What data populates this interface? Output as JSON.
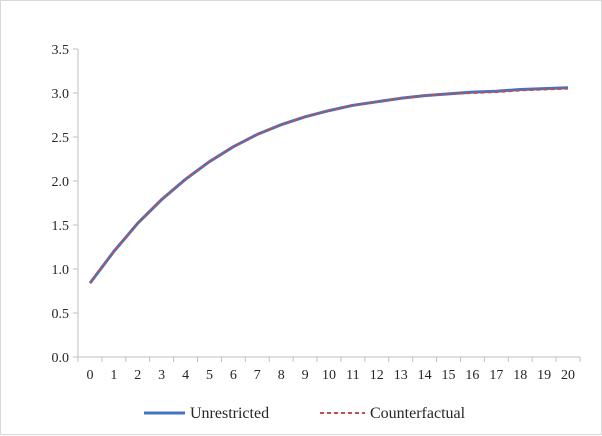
{
  "chart_data": {
    "type": "line",
    "title": "",
    "xlabel": "",
    "ylabel": "",
    "x": [
      0,
      1,
      2,
      3,
      4,
      5,
      6,
      7,
      8,
      9,
      10,
      11,
      12,
      13,
      14,
      15,
      16,
      17,
      18,
      19,
      20
    ],
    "xtick_labels": [
      "0",
      "1",
      "2",
      "3",
      "4",
      "5",
      "6",
      "7",
      "8",
      "9",
      "10",
      "11",
      "12",
      "13",
      "14",
      "15",
      "16",
      "17",
      "18",
      "19",
      "20"
    ],
    "ylim": [
      0.0,
      3.5
    ],
    "ytick_labels": [
      "0.0",
      "0.5",
      "1.0",
      "1.5",
      "2.0",
      "2.5",
      "3.0",
      "3.5"
    ],
    "ytick_values": [
      0.0,
      0.5,
      1.0,
      1.5,
      2.0,
      2.5,
      3.0,
      3.5
    ],
    "grid": false,
    "legend_position": "bottom",
    "series": [
      {
        "name": "Unrestricted",
        "color": "#4472c4",
        "style": "solid",
        "values": [
          0.84,
          1.2,
          1.52,
          1.79,
          2.02,
          2.22,
          2.39,
          2.53,
          2.64,
          2.73,
          2.8,
          2.86,
          2.9,
          2.94,
          2.97,
          2.99,
          3.01,
          3.02,
          3.04,
          3.05,
          3.06
        ]
      },
      {
        "name": "Counterfactual",
        "color": "#c0504d",
        "style": "dashed",
        "values": [
          0.84,
          1.2,
          1.52,
          1.79,
          2.02,
          2.22,
          2.39,
          2.53,
          2.64,
          2.73,
          2.8,
          2.86,
          2.9,
          2.94,
          2.97,
          2.99,
          3.0,
          3.01,
          3.03,
          3.04,
          3.05
        ]
      }
    ]
  }
}
